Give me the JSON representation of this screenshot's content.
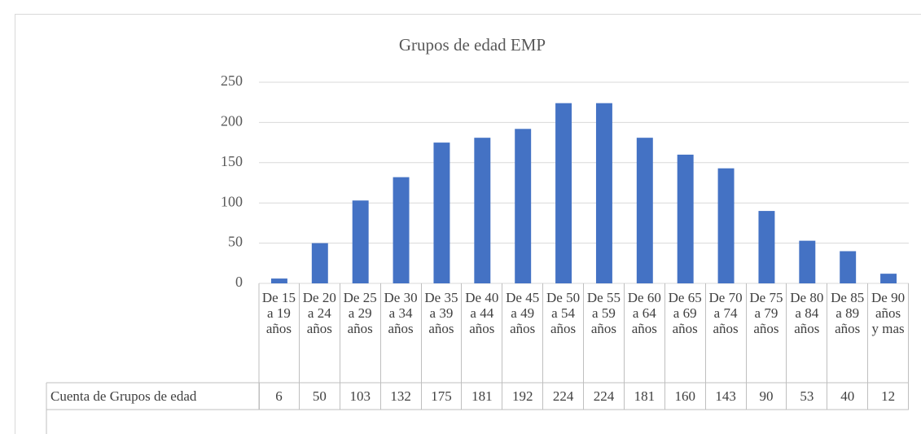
{
  "chart_data": {
    "type": "bar",
    "title": "Grupos de edad EMP",
    "categories": [
      "De 15 a 19 años",
      "De 20 a 24 años",
      "De 25 a 29 años",
      "De 30 a 34 años",
      "De 35 a 39 años",
      "De 40 a 44 años",
      "De 45 a 49 años",
      "De 50 a 54 años",
      "De 55 a 59 años",
      "De 60 a 64 años",
      "De 65 a 69 años",
      "De 70 a 74 años",
      "De 75 a 79 años",
      "De 80 a 84 años",
      "De 85 a 89 años",
      "De 90 años y mas"
    ],
    "series": [
      {
        "name": "Cuenta de Grupos de edad",
        "color": "#4472c4",
        "values": [
          6,
          50,
          103,
          132,
          175,
          181,
          192,
          224,
          224,
          181,
          160,
          143,
          90,
          53,
          40,
          12
        ]
      }
    ],
    "ylim": [
      0,
      250
    ],
    "yticks": [
      0,
      50,
      100,
      150,
      200,
      250
    ],
    "grid": true
  }
}
